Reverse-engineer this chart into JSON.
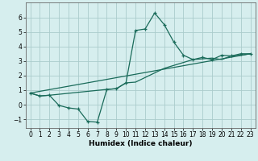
{
  "xlabel": "Humidex (Indice chaleur)",
  "xlim": [
    -0.5,
    23.5
  ],
  "ylim": [
    -1.6,
    7.0
  ],
  "yticks": [
    -1,
    0,
    1,
    2,
    3,
    4,
    5,
    6
  ],
  "xticks": [
    0,
    1,
    2,
    3,
    4,
    5,
    6,
    7,
    8,
    9,
    10,
    11,
    12,
    13,
    14,
    15,
    16,
    17,
    18,
    19,
    20,
    21,
    22,
    23
  ],
  "bg_color": "#d6eeee",
  "grid_color": "#aacccc",
  "line_color": "#1a6b5a",
  "line1_x": [
    0,
    1,
    2,
    3,
    4,
    5,
    6,
    7,
    8,
    9,
    10,
    11,
    12,
    13,
    14,
    15,
    16,
    17,
    18,
    19,
    20,
    21,
    22,
    23
  ],
  "line1_y": [
    0.8,
    0.6,
    0.65,
    -0.05,
    -0.22,
    -0.3,
    -1.15,
    -1.2,
    1.05,
    1.1,
    1.5,
    5.1,
    5.2,
    6.3,
    5.5,
    4.3,
    3.4,
    3.1,
    3.25,
    3.1,
    3.4,
    3.35,
    3.5,
    3.5
  ],
  "line2_x": [
    0,
    1,
    2,
    8,
    9,
    10,
    11,
    14,
    17,
    18,
    19,
    20,
    21,
    22,
    23
  ],
  "line2_y": [
    0.8,
    0.6,
    0.65,
    1.05,
    1.1,
    1.5,
    1.55,
    2.5,
    3.1,
    3.15,
    3.2,
    3.1,
    3.35,
    3.4,
    3.5
  ],
  "line3_x": [
    0,
    23
  ],
  "line3_y": [
    0.8,
    3.5
  ]
}
